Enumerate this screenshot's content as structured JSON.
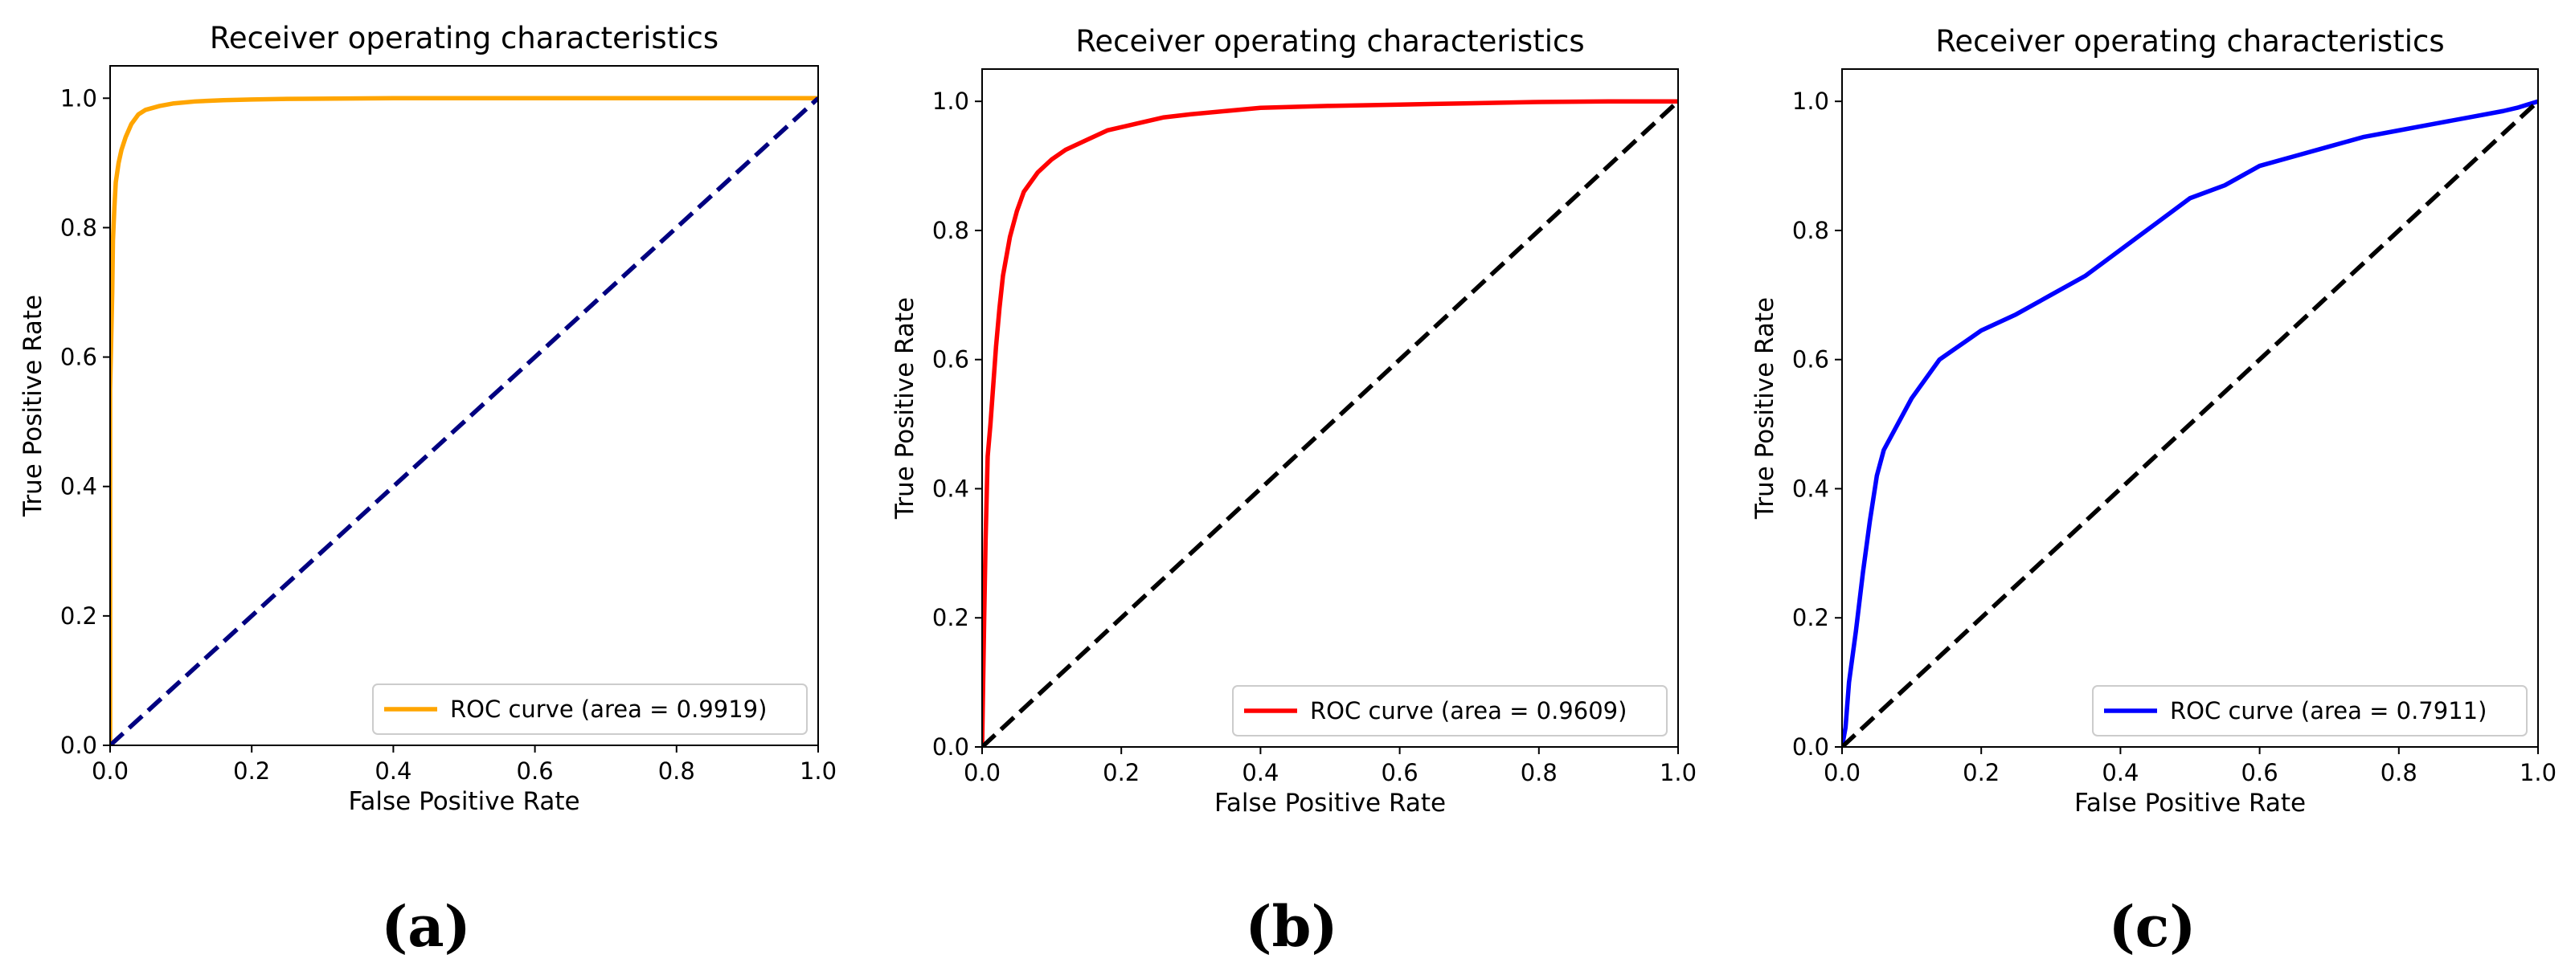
{
  "chart_data": [
    {
      "type": "line",
      "panel_label": "(a)",
      "title": "Receiver operating characteristics",
      "xlabel": "False Positive Rate",
      "ylabel": "True Positive Rate",
      "xlim": [
        0,
        1
      ],
      "ylim": [
        0,
        1.05
      ],
      "xticks": [
        "0.0",
        "0.2",
        "0.4",
        "0.6",
        "0.8",
        "1.0"
      ],
      "yticks": [
        "0.0",
        "0.2",
        "0.4",
        "0.6",
        "0.8",
        "1.0"
      ],
      "legend_position": "lower-right",
      "series": [
        {
          "name": "ROC curve (area = 0.9919)",
          "color": "#ffa500",
          "style": "solid",
          "x": [
            0,
            0,
            0.003,
            0.004,
            0.006,
            0.008,
            0.012,
            0.016,
            0.022,
            0.03,
            0.04,
            0.05,
            0.07,
            0.09,
            0.12,
            0.16,
            0.2,
            0.25,
            0.4,
            0.6,
            0.8,
            1.0
          ],
          "y": [
            0,
            0.55,
            0.7,
            0.78,
            0.83,
            0.87,
            0.9,
            0.92,
            0.94,
            0.96,
            0.975,
            0.982,
            0.988,
            0.992,
            0.995,
            0.997,
            0.998,
            0.999,
            1.0,
            1.0,
            1.0,
            1.0
          ]
        },
        {
          "name": "",
          "color": "#000080",
          "style": "dashed",
          "x": [
            0,
            1
          ],
          "y": [
            0,
            1
          ]
        }
      ]
    },
    {
      "type": "line",
      "panel_label": "(b)",
      "title": "Receiver operating characteristics",
      "xlabel": "False Positive Rate",
      "ylabel": "True Positive Rate",
      "xlim": [
        0,
        1
      ],
      "ylim": [
        0,
        1.05
      ],
      "xticks": [
        "0.0",
        "0.2",
        "0.4",
        "0.6",
        "0.8",
        "1.0"
      ],
      "yticks": [
        "0.0",
        "0.2",
        "0.4",
        "0.6",
        "0.8",
        "1.0"
      ],
      "legend_position": "lower-right",
      "series": [
        {
          "name": "ROC curve (area = 0.9609)",
          "color": "#ff0000",
          "style": "solid",
          "x": [
            0,
            0.003,
            0.005,
            0.008,
            0.012,
            0.016,
            0.02,
            0.025,
            0.03,
            0.04,
            0.05,
            0.06,
            0.08,
            0.1,
            0.12,
            0.15,
            0.18,
            0.22,
            0.26,
            0.3,
            0.35,
            0.4,
            0.5,
            0.6,
            0.7,
            0.8,
            0.9,
            1.0
          ],
          "y": [
            0,
            0.2,
            0.32,
            0.45,
            0.5,
            0.56,
            0.62,
            0.68,
            0.73,
            0.79,
            0.83,
            0.86,
            0.89,
            0.91,
            0.925,
            0.94,
            0.955,
            0.965,
            0.975,
            0.98,
            0.985,
            0.99,
            0.993,
            0.995,
            0.997,
            0.999,
            1.0,
            1.0
          ]
        },
        {
          "name": "",
          "color": "#000000",
          "style": "dashed",
          "x": [
            0,
            1
          ],
          "y": [
            0,
            1
          ]
        }
      ]
    },
    {
      "type": "line",
      "panel_label": "(c)",
      "title": "Receiver operating characteristics",
      "xlabel": "False Positive Rate",
      "ylabel": "True Positive Rate",
      "xlim": [
        0,
        1
      ],
      "ylim": [
        0,
        1.05
      ],
      "xticks": [
        "0.0",
        "0.2",
        "0.4",
        "0.6",
        "0.8",
        "1.0"
      ],
      "yticks": [
        "0.0",
        "0.2",
        "0.4",
        "0.6",
        "0.8",
        "1.0"
      ],
      "legend_position": "lower-right",
      "series": [
        {
          "name": "ROC curve (area = 0.7911)",
          "color": "#0000ff",
          "style": "solid",
          "x": [
            0,
            0.005,
            0.01,
            0.02,
            0.03,
            0.04,
            0.05,
            0.06,
            0.08,
            0.1,
            0.12,
            0.14,
            0.16,
            0.18,
            0.2,
            0.25,
            0.3,
            0.35,
            0.4,
            0.45,
            0.5,
            0.55,
            0.6,
            0.65,
            0.7,
            0.75,
            0.8,
            0.85,
            0.9,
            0.95,
            0.97,
            1.0
          ],
          "y": [
            0,
            0.03,
            0.1,
            0.18,
            0.27,
            0.35,
            0.42,
            0.46,
            0.5,
            0.54,
            0.57,
            0.6,
            0.615,
            0.63,
            0.645,
            0.67,
            0.7,
            0.73,
            0.77,
            0.81,
            0.85,
            0.87,
            0.9,
            0.915,
            0.93,
            0.945,
            0.955,
            0.965,
            0.975,
            0.985,
            0.99,
            1.0
          ]
        },
        {
          "name": "",
          "color": "#000000",
          "style": "dashed",
          "x": [
            0,
            1
          ],
          "y": [
            0,
            1
          ]
        }
      ]
    }
  ]
}
